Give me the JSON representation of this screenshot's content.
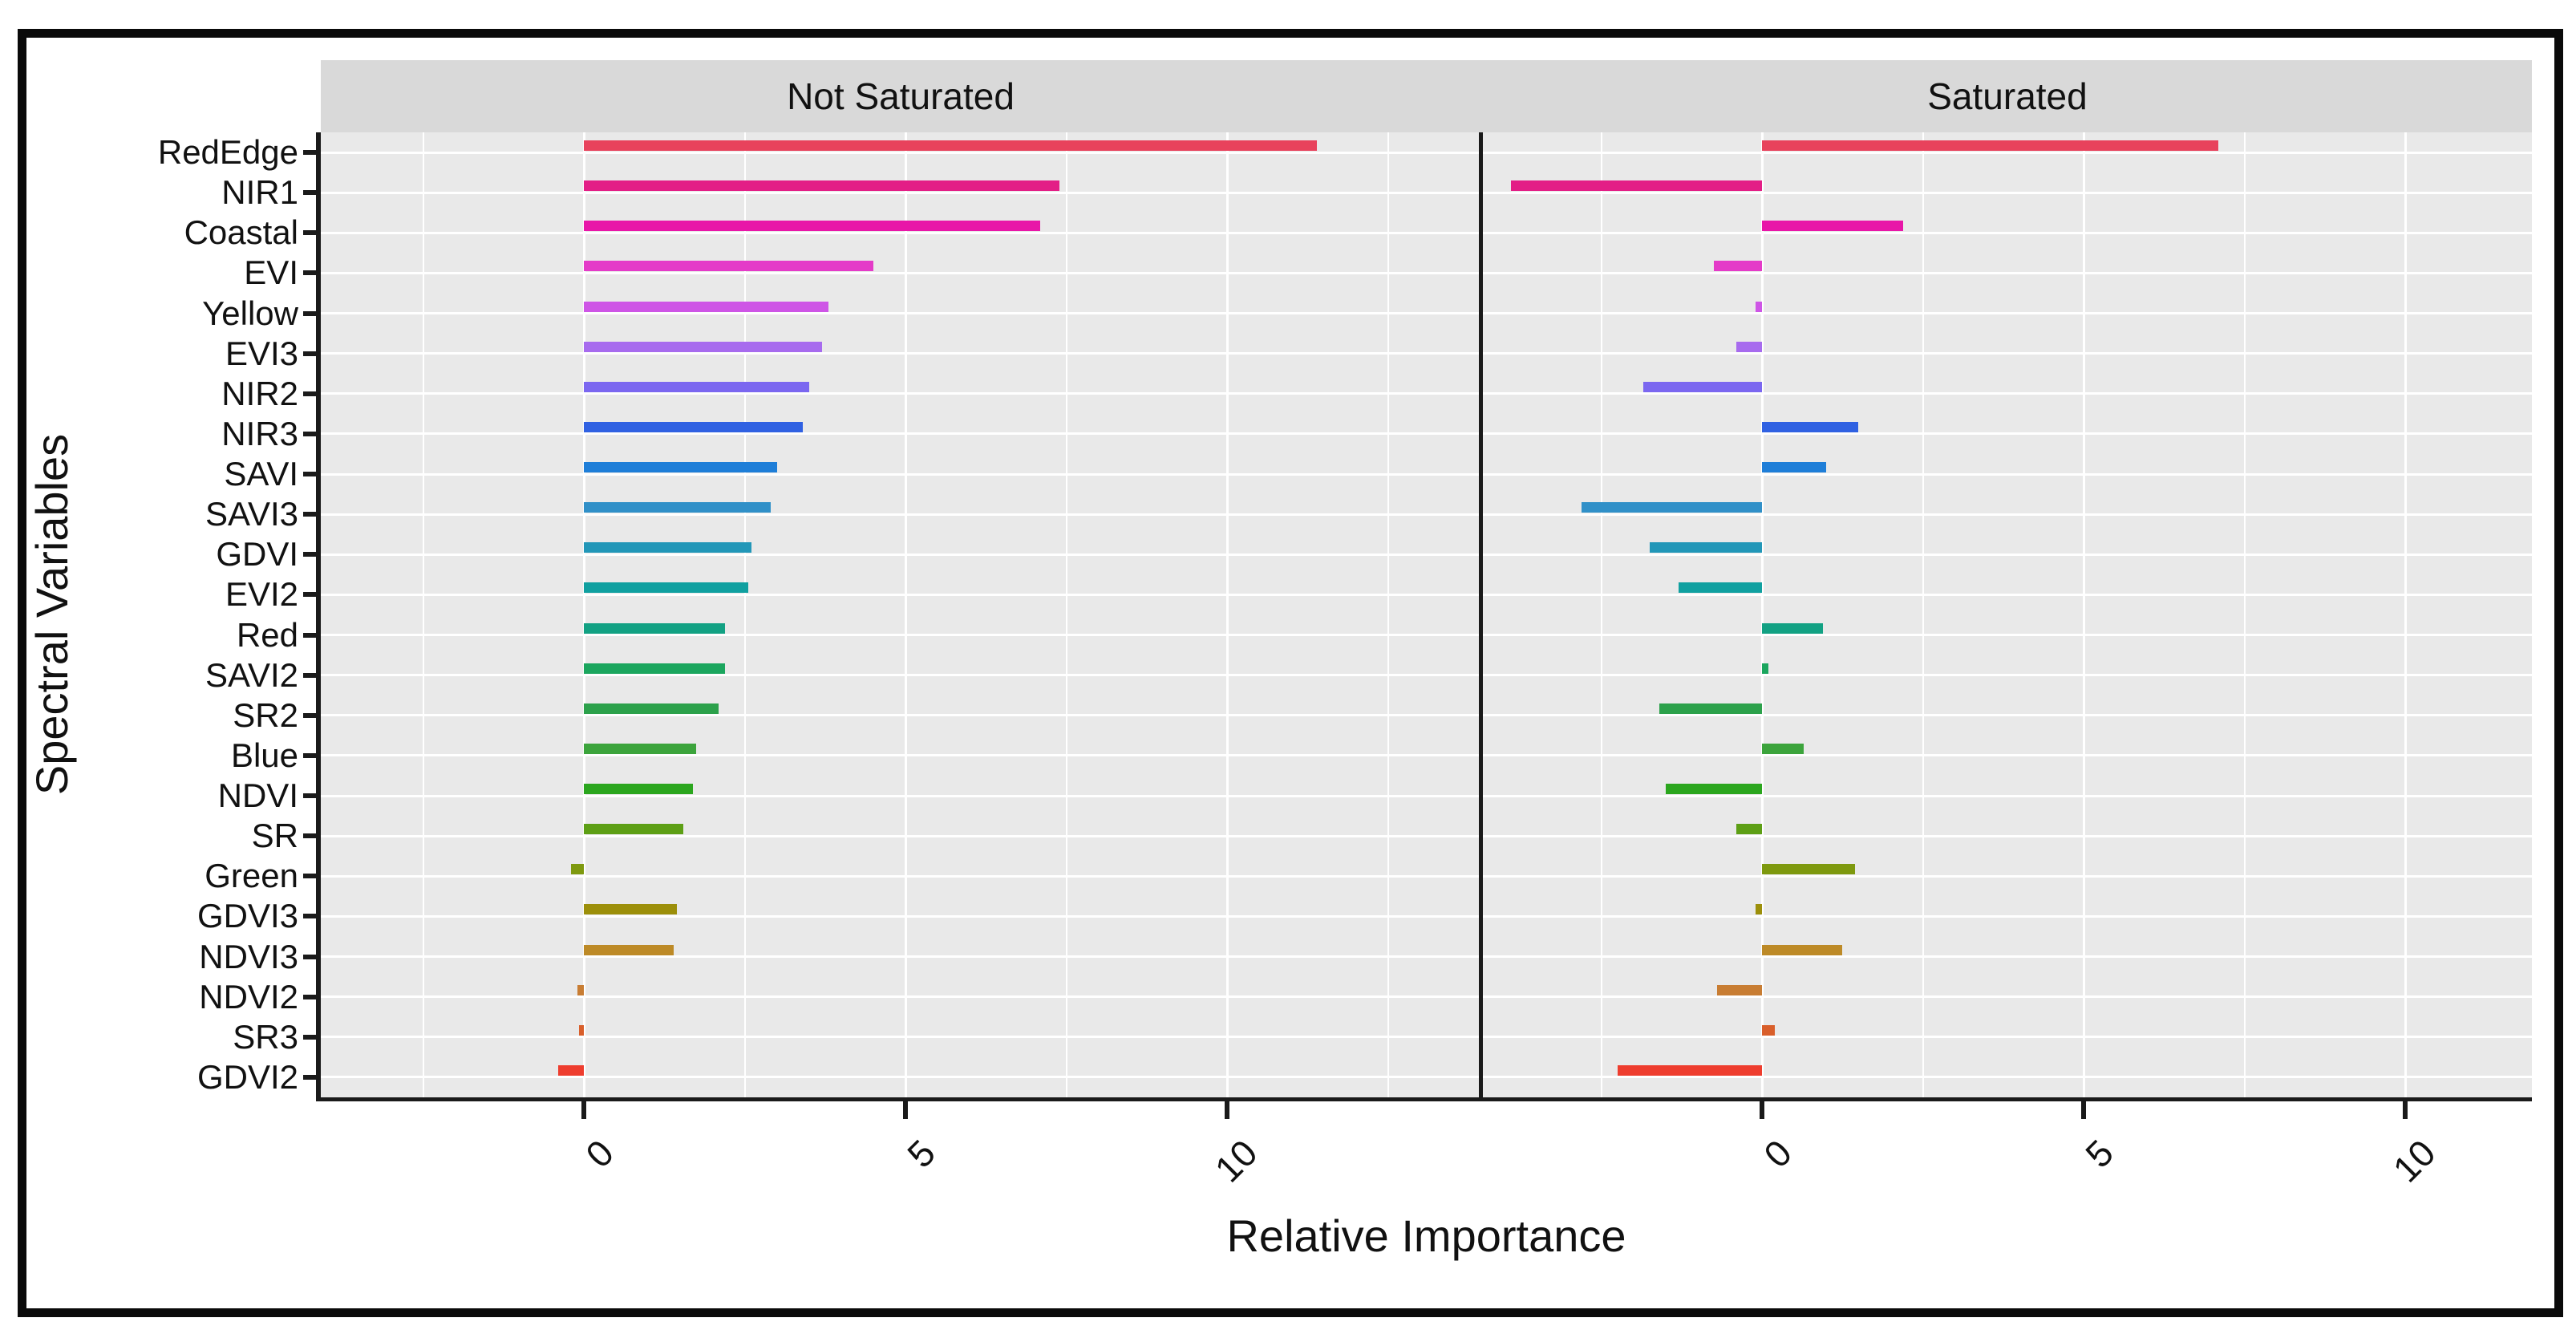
{
  "figure": {
    "x_axis_title": "Relative Importance",
    "y_axis_title": "Spectral Variables"
  },
  "chart_data": {
    "type": "bar",
    "orientation": "horizontal",
    "title": "",
    "xlabel": "Relative Importance",
    "ylabel": "Spectral Variables",
    "legend": "none",
    "grid": "white major and minor gridlines on gray panel",
    "facet_labels": [
      "Not Saturated",
      "Saturated"
    ],
    "x_ticks": [
      0,
      5,
      10
    ],
    "x_minor_ticks": [
      -2.5,
      2.5,
      7.5,
      12.5
    ],
    "xlim_not_saturated": [
      -4.1,
      13.9
    ],
    "xlim_saturated": [
      -4.3,
      12.0
    ],
    "categories": [
      "RedEdge",
      "NIR1",
      "Coastal",
      "EVI",
      "Yellow",
      "EVI3",
      "NIR2",
      "NIR3",
      "SAVI",
      "SAVI3",
      "GDVI",
      "EVI2",
      "Red",
      "SAVI2",
      "SR2",
      "Blue",
      "NDVI",
      "SR",
      "Green",
      "GDVI3",
      "NDVI3",
      "NDVI2",
      "SR3",
      "GDVI2"
    ],
    "colors": [
      "#E8425C",
      "#E31E86",
      "#E816A8",
      "#E43BC8",
      "#CE55E6",
      "#A76BEE",
      "#7B67F0",
      "#3061E2",
      "#1E7ED8",
      "#3090C8",
      "#2297B8",
      "#10A0A0",
      "#12A183",
      "#1BA65E",
      "#2CA14B",
      "#3CA43C",
      "#2BA61E",
      "#5D9F15",
      "#7E990F",
      "#9C8F0A",
      "#BD8A27",
      "#C87D33",
      "#D95F2B",
      "#EE3D2E"
    ],
    "series": [
      {
        "name": "Not Saturated",
        "values": [
          11.4,
          7.4,
          7.1,
          4.5,
          3.8,
          3.7,
          3.5,
          3.4,
          3.0,
          2.9,
          2.6,
          2.55,
          2.2,
          2.2,
          2.1,
          1.75,
          1.7,
          1.55,
          -0.2,
          1.45,
          1.4,
          -0.1,
          -0.05,
          -0.4
        ]
      },
      {
        "name": "Saturated",
        "values": [
          7.1,
          -3.9,
          2.2,
          -0.75,
          -0.1,
          -0.4,
          -1.85,
          1.5,
          1.0,
          -2.8,
          -1.75,
          -1.3,
          0.95,
          0.1,
          -1.6,
          0.65,
          -1.5,
          -0.4,
          1.45,
          -0.1,
          1.25,
          -0.7,
          0.2,
          -2.25
        ]
      }
    ]
  },
  "colors": {
    "panel_bg": "#E9E9E9",
    "strip_bg": "#D9D9D9",
    "gridline": "#FFFFFF",
    "axis": "#1A1A1A",
    "outer_frame": "#0A0A0A",
    "page_bg": "#FFFFFF"
  }
}
